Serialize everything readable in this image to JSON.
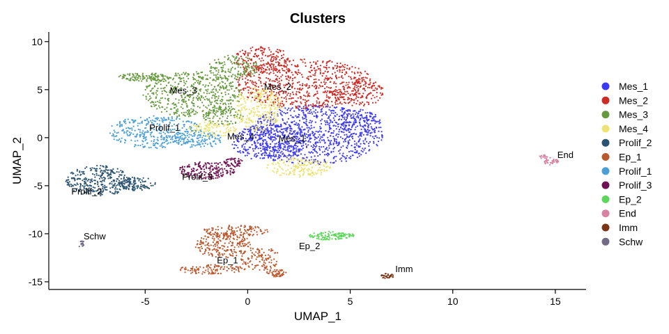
{
  "chart_data": {
    "type": "scatter",
    "title": "Clusters",
    "xlabel": "UMAP_1",
    "ylabel": "UMAP_2",
    "xlim": [
      -9.7,
      16.5
    ],
    "ylim": [
      -15.8,
      11
    ],
    "x_ticks": [
      -5,
      0,
      5,
      10,
      15
    ],
    "y_ticks": [
      -15,
      -10,
      -5,
      0,
      5,
      10
    ],
    "x_tick_labels": [
      "-5",
      "0",
      "5",
      "10",
      "15"
    ],
    "y_tick_labels": [
      "-15",
      "-10",
      "-5",
      "0",
      "5",
      "10"
    ],
    "grid": false,
    "legend_position": "right",
    "series": [
      {
        "name": "Mes_1",
        "color": "#3b38f6",
        "label": {
          "text": "Mes_1",
          "x": 1.5,
          "y": -0.4
        },
        "blobs": [
          {
            "cx": 3.3,
            "cy": 0.3,
            "rx": 3.3,
            "ry": 3.1,
            "n": 900
          },
          {
            "cx": 1.0,
            "cy": -0.5,
            "rx": 1.8,
            "ry": 1.9,
            "n": 300
          },
          {
            "cx": 5.3,
            "cy": 1.5,
            "rx": 1.2,
            "ry": 1.5,
            "n": 150
          }
        ]
      },
      {
        "name": "Mes_2",
        "color": "#cc2a24",
        "label": {
          "text": "Mes_2",
          "x": 0.8,
          "y": 5.0
        },
        "blobs": [
          {
            "cx": 2.8,
            "cy": 5.6,
            "rx": 3.4,
            "ry": 2.6,
            "n": 700
          },
          {
            "cx": 0.7,
            "cy": 8.1,
            "rx": 1.4,
            "ry": 1.4,
            "n": 180
          },
          {
            "cx": 5.4,
            "cy": 4.7,
            "rx": 1.3,
            "ry": 1.4,
            "n": 140
          }
        ]
      },
      {
        "name": "Mes_3",
        "color": "#679a3f",
        "label": {
          "text": "Mes_3",
          "x": -3.8,
          "y": 4.6
        },
        "blobs": [
          {
            "cx": -2.7,
            "cy": 4.5,
            "rx": 2.4,
            "ry": 2.4,
            "n": 500
          },
          {
            "cx": -5.0,
            "cy": 6.3,
            "rx": 1.3,
            "ry": 0.45,
            "n": 120
          },
          {
            "cx": -0.7,
            "cy": 7.3,
            "rx": 1.2,
            "ry": 1.3,
            "n": 150
          },
          {
            "cx": -1.2,
            "cy": 2.3,
            "rx": 1.0,
            "ry": 1.0,
            "n": 100
          }
        ]
      },
      {
        "name": "Mes_4",
        "color": "#ece373",
        "label": {
          "text": "Mes_4",
          "x": -1.0,
          "y": -0.2
        },
        "blobs": [
          {
            "cx": 0.5,
            "cy": 3.0,
            "rx": 1.2,
            "ry": 2.3,
            "n": 260
          },
          {
            "cx": 2.5,
            "cy": -3.1,
            "rx": 1.6,
            "ry": 1.0,
            "n": 170
          },
          {
            "cx": -1.7,
            "cy": 0.9,
            "rx": 1.2,
            "ry": 0.8,
            "n": 110
          }
        ]
      },
      {
        "name": "Prolif_2",
        "color": "#2b5470",
        "label": {
          "text": "Prolif_2",
          "x": -8.6,
          "y": -5.9
        },
        "blobs": [
          {
            "cx": -7.3,
            "cy": -4.5,
            "rx": 1.6,
            "ry": 1.6,
            "n": 330
          },
          {
            "cx": -5.4,
            "cy": -4.8,
            "rx": 0.9,
            "ry": 0.7,
            "n": 100
          }
        ]
      },
      {
        "name": "Ep_1",
        "color": "#b9592e",
        "label": {
          "text": "Ep_1",
          "x": -1.5,
          "y": -13.1
        },
        "blobs": [
          {
            "cx": -1.2,
            "cy": -11.2,
            "rx": 1.4,
            "ry": 1.3,
            "n": 220
          },
          {
            "cx": -0.6,
            "cy": -9.7,
            "rx": 1.6,
            "ry": 0.6,
            "n": 120
          },
          {
            "cx": -1.8,
            "cy": -13.7,
            "rx": 1.7,
            "ry": 0.5,
            "n": 110
          },
          {
            "cx": 0.6,
            "cy": -12.6,
            "rx": 1.0,
            "ry": 1.2,
            "n": 110
          },
          {
            "cx": 1.4,
            "cy": -14.1,
            "rx": 0.5,
            "ry": 0.4,
            "n": 50
          }
        ]
      },
      {
        "name": "Prolif_1",
        "color": "#4b9fd5",
        "label": {
          "text": "Prolif_1",
          "x": -4.8,
          "y": 0.7
        },
        "blobs": [
          {
            "cx": -4.5,
            "cy": 0.6,
            "rx": 2.3,
            "ry": 1.7,
            "n": 350
          },
          {
            "cx": -2.5,
            "cy": -0.2,
            "rx": 1.3,
            "ry": 0.9,
            "n": 120
          }
        ]
      },
      {
        "name": "Prolif_3",
        "color": "#6f1253",
        "label": {
          "text": "Prolif_3",
          "x": -3.2,
          "y": -4.4
        },
        "blobs": [
          {
            "cx": -2.0,
            "cy": -3.4,
            "rx": 1.4,
            "ry": 0.9,
            "n": 190
          },
          {
            "cx": -0.7,
            "cy": -2.6,
            "rx": 0.5,
            "ry": 0.5,
            "n": 50
          }
        ]
      },
      {
        "name": "Ep_2",
        "color": "#5cd75c",
        "label": {
          "text": "Ep_2",
          "x": 2.5,
          "y": -11.6
        },
        "blobs": [
          {
            "cx": 3.9,
            "cy": -10.2,
            "rx": 0.9,
            "ry": 0.45,
            "n": 80
          },
          {
            "cx": 4.7,
            "cy": -10.2,
            "rx": 0.5,
            "ry": 0.3,
            "n": 40
          }
        ]
      },
      {
        "name": "End",
        "color": "#d782a3",
        "label": {
          "text": "End",
          "x": 15.1,
          "y": -2.1
        },
        "blobs": [
          {
            "cx": 14.8,
            "cy": -2.5,
            "rx": 0.35,
            "ry": 0.35,
            "n": 35
          },
          {
            "cx": 14.5,
            "cy": -2.0,
            "rx": 0.3,
            "ry": 0.2,
            "n": 15
          }
        ]
      },
      {
        "name": "Imm",
        "color": "#7b3518",
        "label": {
          "text": "Imm",
          "x": 7.2,
          "y": -14.0
        },
        "blobs": [
          {
            "cx": 6.8,
            "cy": -14.4,
            "rx": 0.35,
            "ry": 0.25,
            "n": 30
          }
        ]
      },
      {
        "name": "Schw",
        "color": "#736b86",
        "label": {
          "text": "Schw",
          "x": -8.0,
          "y": -10.6
        },
        "blobs": [
          {
            "cx": -8.1,
            "cy": -11.1,
            "rx": 0.15,
            "ry": 0.4,
            "n": 15
          }
        ]
      }
    ]
  }
}
